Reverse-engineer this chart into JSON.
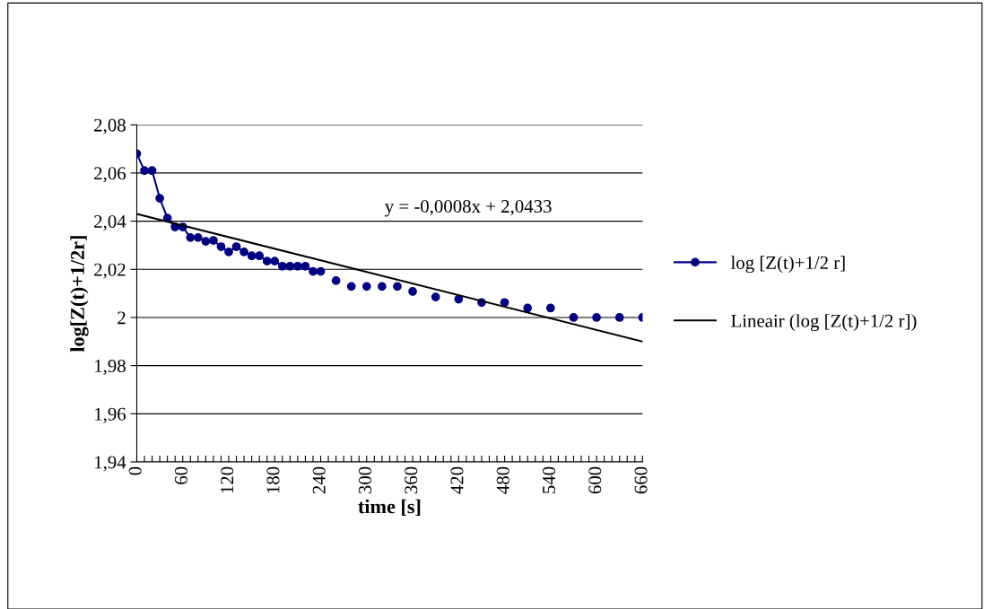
{
  "chart_data": {
    "type": "line",
    "xlabel": "time [s]",
    "ylabel": "log[Z(t)+1/2r]",
    "x": [
      0,
      10,
      20,
      30,
      40,
      50,
      60,
      70,
      80,
      90,
      100,
      110,
      120,
      130,
      140,
      150,
      160,
      170,
      180,
      190,
      200,
      210,
      220,
      230,
      240,
      250,
      260,
      270,
      280,
      290,
      300,
      310,
      320,
      330,
      340,
      350,
      360,
      370,
      380,
      390,
      400,
      410,
      420,
      430,
      440,
      450,
      460,
      470,
      480,
      490,
      500,
      510,
      520,
      530,
      540,
      550,
      560,
      570,
      580,
      590,
      600,
      610,
      620,
      630,
      640,
      650,
      660
    ],
    "series": [
      {
        "name": "log [Z(t)+1/2 r]",
        "color": "#000080",
        "marker": "circle",
        "values": [
          2.068,
          2.061,
          2.061,
          2.0495,
          2.0413,
          2.0376,
          2.0376,
          2.0332,
          2.0332,
          2.0316,
          2.032,
          2.0294,
          2.0272,
          2.0294,
          2.0272,
          2.0256,
          2.0256,
          2.0234,
          2.0234,
          2.0213,
          2.0213,
          2.0213,
          2.0213,
          2.0191,
          2.0191,
          null,
          2.0153,
          null,
          2.0129,
          null,
          2.0129,
          null,
          2.0129,
          null,
          2.0129,
          null,
          2.0108,
          null,
          null,
          2.0085,
          null,
          null,
          2.0076,
          null,
          null,
          2.0062,
          null,
          null,
          2.0062,
          null,
          null,
          2.0039,
          null,
          null,
          2.0039,
          null,
          null,
          2.0,
          null,
          null,
          2.0,
          null,
          null,
          2.0,
          null,
          null,
          2.0
        ]
      },
      {
        "name": "Lineair (log [Z(t)+1/2 r])",
        "type": "line",
        "color": "#000000",
        "marker": "none",
        "x": [
          0,
          660
        ],
        "values": [
          2.043,
          1.99
        ]
      }
    ],
    "annotations": [
      "y = -0,0008x + 2,0433"
    ],
    "xlim": [
      0,
      660
    ],
    "ylim": [
      1.94,
      2.08
    ],
    "xticks": [
      {
        "value": 0,
        "label": "0"
      },
      {
        "value": 10,
        "label": null
      },
      {
        "value": 20,
        "label": null
      },
      {
        "value": 30,
        "label": null
      },
      {
        "value": 40,
        "label": null
      },
      {
        "value": 50,
        "label": null
      },
      {
        "value": 60,
        "label": "60"
      },
      {
        "value": 70,
        "label": null
      },
      {
        "value": 80,
        "label": null
      },
      {
        "value": 90,
        "label": null
      },
      {
        "value": 100,
        "label": null
      },
      {
        "value": 110,
        "label": null
      },
      {
        "value": 120,
        "label": "120"
      },
      {
        "value": 130,
        "label": null
      },
      {
        "value": 140,
        "label": null
      },
      {
        "value": 150,
        "label": null
      },
      {
        "value": 160,
        "label": null
      },
      {
        "value": 170,
        "label": null
      },
      {
        "value": 180,
        "label": "180"
      },
      {
        "value": 190,
        "label": null
      },
      {
        "value": 200,
        "label": null
      },
      {
        "value": 210,
        "label": null
      },
      {
        "value": 220,
        "label": null
      },
      {
        "value": 230,
        "label": null
      },
      {
        "value": 240,
        "label": "240"
      },
      {
        "value": 250,
        "label": null
      },
      {
        "value": 260,
        "label": null
      },
      {
        "value": 270,
        "label": null
      },
      {
        "value": 280,
        "label": null
      },
      {
        "value": 290,
        "label": null
      },
      {
        "value": 300,
        "label": "300"
      },
      {
        "value": 310,
        "label": null
      },
      {
        "value": 320,
        "label": null
      },
      {
        "value": 330,
        "label": null
      },
      {
        "value": 340,
        "label": null
      },
      {
        "value": 350,
        "label": null
      },
      {
        "value": 360,
        "label": "360"
      },
      {
        "value": 370,
        "label": null
      },
      {
        "value": 380,
        "label": null
      },
      {
        "value": 390,
        "label": null
      },
      {
        "value": 400,
        "label": null
      },
      {
        "value": 410,
        "label": null
      },
      {
        "value": 420,
        "label": "420"
      },
      {
        "value": 430,
        "label": null
      },
      {
        "value": 440,
        "label": null
      },
      {
        "value": 450,
        "label": null
      },
      {
        "value": 460,
        "label": null
      },
      {
        "value": 470,
        "label": null
      },
      {
        "value": 480,
        "label": "480"
      },
      {
        "value": 490,
        "label": null
      },
      {
        "value": 500,
        "label": null
      },
      {
        "value": 510,
        "label": null
      },
      {
        "value": 520,
        "label": null
      },
      {
        "value": 530,
        "label": null
      },
      {
        "value": 540,
        "label": "540"
      },
      {
        "value": 550,
        "label": null
      },
      {
        "value": 560,
        "label": null
      },
      {
        "value": 570,
        "label": null
      },
      {
        "value": 580,
        "label": null
      },
      {
        "value": 590,
        "label": null
      },
      {
        "value": 600,
        "label": "600"
      },
      {
        "value": 610,
        "label": null
      },
      {
        "value": 620,
        "label": null
      },
      {
        "value": 630,
        "label": null
      },
      {
        "value": 640,
        "label": null
      },
      {
        "value": 650,
        "label": null
      },
      {
        "value": 660,
        "label": "660"
      }
    ],
    "yticks": [
      {
        "value": 1.94,
        "label": "1,94"
      },
      {
        "value": 1.96,
        "label": "1,96"
      },
      {
        "value": 1.98,
        "label": "1,98"
      },
      {
        "value": 2.0,
        "label": "2"
      },
      {
        "value": 2.02,
        "label": "2,02"
      },
      {
        "value": 2.04,
        "label": "2,04"
      },
      {
        "value": 2.06,
        "label": "2,06"
      },
      {
        "value": 2.08,
        "label": "2,08"
      }
    ],
    "grid": "y",
    "legend": "right"
  }
}
